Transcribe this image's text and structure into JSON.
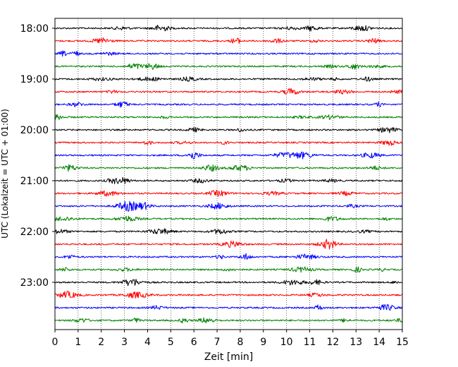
{
  "chart_data": {
    "type": "line",
    "title": "",
    "xlabel": "Zeit  [min]",
    "ylabel": "UTC (Lokalzeit = UTC + 01:00)",
    "xlim": [
      0,
      15
    ],
    "xticks": [
      0,
      1,
      2,
      3,
      4,
      5,
      6,
      7,
      8,
      9,
      10,
      11,
      12,
      13,
      14,
      15
    ],
    "yticks": [
      "18:00",
      "19:00",
      "20:00",
      "21:00",
      "22:00",
      "23:00"
    ],
    "grid": {
      "x": true,
      "y": false,
      "style": "dotted"
    },
    "trace_interval_minutes": 15,
    "colors": [
      "#000000",
      "#ff0000",
      "#0000ff",
      "#008000"
    ],
    "traces": [
      {
        "start": "18:00",
        "color": "#000000"
      },
      {
        "start": "18:15",
        "color": "#ff0000"
      },
      {
        "start": "18:30",
        "color": "#0000ff"
      },
      {
        "start": "18:45",
        "color": "#008000"
      },
      {
        "start": "19:00",
        "color": "#000000"
      },
      {
        "start": "19:15",
        "color": "#ff0000"
      },
      {
        "start": "19:30",
        "color": "#0000ff"
      },
      {
        "start": "19:45",
        "color": "#008000"
      },
      {
        "start": "20:00",
        "color": "#000000"
      },
      {
        "start": "20:15",
        "color": "#ff0000"
      },
      {
        "start": "20:30",
        "color": "#0000ff"
      },
      {
        "start": "20:45",
        "color": "#008000"
      },
      {
        "start": "21:00",
        "color": "#000000"
      },
      {
        "start": "21:15",
        "color": "#ff0000"
      },
      {
        "start": "21:30",
        "color": "#0000ff"
      },
      {
        "start": "21:45",
        "color": "#008000"
      },
      {
        "start": "22:00",
        "color": "#000000"
      },
      {
        "start": "22:15",
        "color": "#ff0000"
      },
      {
        "start": "22:30",
        "color": "#0000ff"
      },
      {
        "start": "22:45",
        "color": "#008000"
      },
      {
        "start": "23:00",
        "color": "#000000"
      },
      {
        "start": "23:15",
        "color": "#ff0000"
      },
      {
        "start": "23:30",
        "color": "#0000ff"
      },
      {
        "start": "23:45",
        "color": "#008000"
      }
    ]
  }
}
